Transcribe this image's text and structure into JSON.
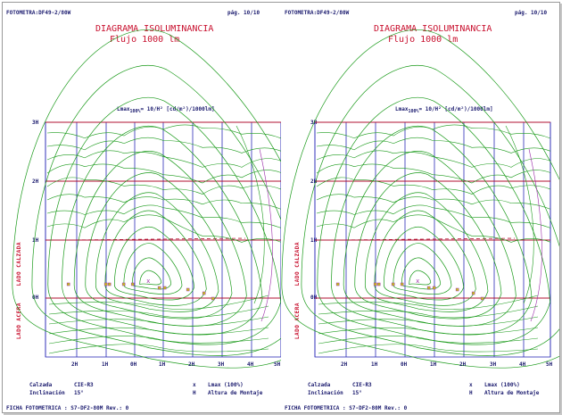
{
  "panels": [
    {
      "header_left": "FOTOMETRA:DF49-2/80W",
      "page": "pág. 10/10",
      "title": "DIAGRAMA ISOLUMINANCIA",
      "subtitle": "Flujo 1000 lm",
      "lmax_label": "Lmax",
      "lmax_sub": "100%",
      "lmax_value": "= 10/H² [cd/m²)/1000lm]",
      "y_ticks": [
        "3H",
        "2H",
        "1H",
        "0H"
      ],
      "x_ticks": [
        "2H",
        "1H",
        "0H",
        "1H",
        "2H",
        "3H",
        "4H",
        "5H"
      ],
      "side_top": "LADO CALZADA",
      "side_bottom": "LADO ACERA",
      "legend": {
        "calzada_label": "Calzada",
        "calzada_value": "CIE-R3",
        "inclinacion_label": "Inclinación",
        "inclinacion_value": "15°",
        "x_symbol": "x",
        "x_desc": "Lmax (100%)",
        "h_symbol": "H",
        "h_desc": "Altura de Montaje"
      },
      "footer": "FICHA FOTOMETRICA : S7-DF2-80M   Rev.: 0"
    },
    {
      "header_left": "FOTOMETRA:DF49-2/80W",
      "page": "pág. 10/10",
      "title": "DIAGRAMA ISOLUMINANCIA",
      "subtitle": "Flujo 1000 lm",
      "lmax_label": "Lmax",
      "lmax_sub": "100%",
      "lmax_value": "= 10/H² [cd/m²)/1000lm]",
      "y_ticks": [
        "3H",
        "2H",
        "1H",
        "0H"
      ],
      "x_ticks": [
        "2H",
        "1H",
        "0H",
        "1H",
        "2H",
        "3H",
        "4H",
        "5H"
      ],
      "side_top": "LADO CALZADA",
      "side_bottom": "LADO ACERA",
      "legend": {
        "calzada_label": "Calzada",
        "calzada_value": "CIE-R3",
        "inclinacion_label": "Inclinación",
        "inclinacion_value": "15°",
        "x_symbol": "x",
        "x_desc": "Lmax (100%)",
        "h_symbol": "H",
        "h_desc": "Altura de Montaje"
      },
      "footer": "FICHA FOTOMETRICA : S7-DF2-80M   Rev.: 0"
    }
  ],
  "colors": {
    "grid_vertical": "#2a2ab8",
    "grid_horizontal": "#b01030",
    "contour": "#1a9a1a",
    "marker": "#9a2aa8",
    "text": "#1a1a6e",
    "title": "#c8102e"
  }
}
